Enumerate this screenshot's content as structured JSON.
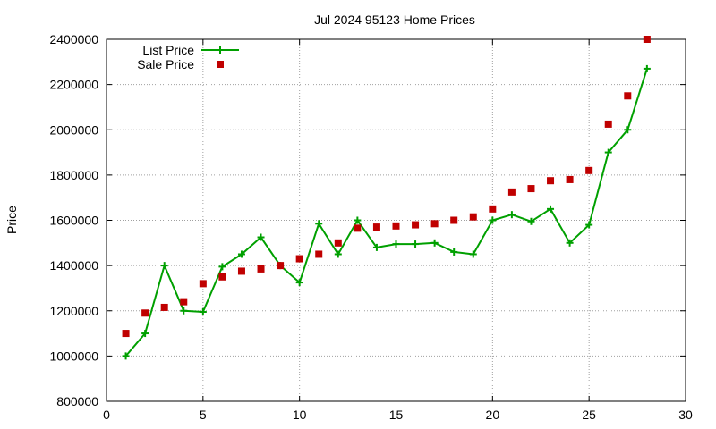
{
  "chart_data": {
    "type": "line",
    "title": "Jul 2024 95123 Home Prices",
    "xlabel": "",
    "ylabel": "Price",
    "xlim": [
      0,
      30
    ],
    "ylim": [
      800000,
      2400000
    ],
    "xticks": [
      0,
      5,
      10,
      15,
      20,
      25,
      30
    ],
    "yticks": [
      800000,
      1000000,
      1200000,
      1400000,
      1600000,
      1800000,
      2000000,
      2200000,
      2400000
    ],
    "grid": true,
    "legend_position": "top-left",
    "series": [
      {
        "name": "List Price",
        "style": "linespoints",
        "marker": "plus",
        "color": "#00a000",
        "points": [
          [
            1,
            1000000
          ],
          [
            2,
            1100000
          ],
          [
            3,
            1400000
          ],
          [
            4,
            1200000
          ],
          [
            5,
            1195000
          ],
          [
            6,
            1395000
          ],
          [
            7,
            1450000
          ],
          [
            8,
            1525000
          ],
          [
            9,
            1400000
          ],
          [
            10,
            1325000
          ],
          [
            11,
            1585000
          ],
          [
            12,
            1450000
          ],
          [
            13,
            1600000
          ],
          [
            14,
            1480000
          ],
          [
            15,
            1495000
          ],
          [
            16,
            1495000
          ],
          [
            17,
            1500000
          ],
          [
            18,
            1460000
          ],
          [
            19,
            1450000
          ],
          [
            20,
            1600000
          ],
          [
            21,
            1625000
          ],
          [
            22,
            1595000
          ],
          [
            23,
            1650000
          ],
          [
            24,
            1500000
          ],
          [
            25,
            1580000
          ],
          [
            26,
            1900000
          ],
          [
            27,
            2000000
          ],
          [
            28,
            2270000
          ]
        ]
      },
      {
        "name": "Sale Price",
        "style": "points",
        "marker": "square",
        "color": "#c00000",
        "points": [
          [
            1,
            1100000
          ],
          [
            2,
            1190000
          ],
          [
            3,
            1215000
          ],
          [
            4,
            1240000
          ],
          [
            5,
            1320000
          ],
          [
            6,
            1350000
          ],
          [
            7,
            1375000
          ],
          [
            8,
            1385000
          ],
          [
            9,
            1400000
          ],
          [
            10,
            1430000
          ],
          [
            11,
            1450000
          ],
          [
            12,
            1500000
          ],
          [
            13,
            1565000
          ],
          [
            14,
            1570000
          ],
          [
            15,
            1575000
          ],
          [
            16,
            1580000
          ],
          [
            17,
            1585000
          ],
          [
            18,
            1600000
          ],
          [
            19,
            1615000
          ],
          [
            20,
            1650000
          ],
          [
            21,
            1725000
          ],
          [
            22,
            1740000
          ],
          [
            23,
            1775000
          ],
          [
            24,
            1780000
          ],
          [
            25,
            1820000
          ],
          [
            26,
            2025000
          ],
          [
            27,
            2150000
          ],
          [
            28,
            2400000
          ]
        ]
      }
    ]
  }
}
